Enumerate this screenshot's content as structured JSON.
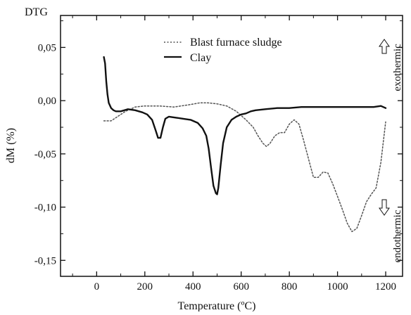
{
  "chart_data": {
    "type": "line",
    "title": "",
    "corner_label": "DTG",
    "xlabel": "Temperature (ºC)",
    "ylabel": "dM (%)",
    "xlim": [
      -150,
      1270
    ],
    "ylim": [
      -0.165,
      0.08
    ],
    "xticks": [
      0,
      200,
      400,
      600,
      800,
      1000,
      1200
    ],
    "xtick_labels": [
      "0",
      "200",
      "400",
      "600",
      "800",
      "1000",
      "1200"
    ],
    "yticks": [
      0.05,
      0.0,
      -0.05,
      -0.1,
      -0.15
    ],
    "ytick_labels": [
      "0,05",
      "0,00",
      "-0,05",
      "-0,10",
      "-0,15"
    ],
    "grid": false,
    "legend_position": "top-center",
    "annotations": [
      "exothermic",
      "endothermic"
    ],
    "series": [
      {
        "name": "Blast furnace sludge",
        "style": "dotted",
        "color": "#555555",
        "x": [
          30,
          60,
          80,
          120,
          160,
          200,
          260,
          320,
          380,
          430,
          460,
          500,
          540,
          580,
          620,
          650,
          670,
          690,
          705,
          720,
          740,
          760,
          780,
          800,
          820,
          840,
          860,
          880,
          900,
          920,
          940,
          960,
          980,
          1000,
          1020,
          1040,
          1060,
          1080,
          1100,
          1120,
          1140,
          1160,
          1180,
          1200
        ],
        "y": [
          -0.019,
          -0.019,
          -0.016,
          -0.01,
          -0.006,
          -0.005,
          -0.005,
          -0.006,
          -0.004,
          -0.002,
          -0.002,
          -0.003,
          -0.005,
          -0.01,
          -0.018,
          -0.025,
          -0.033,
          -0.04,
          -0.043,
          -0.04,
          -0.033,
          -0.03,
          -0.03,
          -0.022,
          -0.018,
          -0.022,
          -0.038,
          -0.055,
          -0.072,
          -0.072,
          -0.067,
          -0.068,
          -0.078,
          -0.09,
          -0.102,
          -0.115,
          -0.123,
          -0.12,
          -0.108,
          -0.095,
          -0.088,
          -0.082,
          -0.058,
          -0.02
        ]
      },
      {
        "name": "Clay",
        "style": "solid",
        "color": "#111111",
        "x": [
          30,
          35,
          40,
          45,
          50,
          60,
          70,
          80,
          100,
          130,
          160,
          190,
          210,
          230,
          245,
          255,
          265,
          275,
          285,
          300,
          330,
          360,
          390,
          420,
          440,
          455,
          465,
          475,
          485,
          495,
          500,
          505,
          515,
          525,
          540,
          560,
          580,
          600,
          620,
          640,
          660,
          700,
          750,
          800,
          850,
          900,
          950,
          1000,
          1050,
          1100,
          1150,
          1180,
          1200
        ],
        "y": [
          0.041,
          0.035,
          0.018,
          0.006,
          -0.002,
          -0.007,
          -0.009,
          -0.01,
          -0.01,
          -0.008,
          -0.009,
          -0.011,
          -0.013,
          -0.018,
          -0.028,
          -0.035,
          -0.035,
          -0.025,
          -0.017,
          -0.015,
          -0.016,
          -0.017,
          -0.018,
          -0.021,
          -0.026,
          -0.033,
          -0.045,
          -0.063,
          -0.08,
          -0.087,
          -0.088,
          -0.082,
          -0.06,
          -0.04,
          -0.025,
          -0.018,
          -0.015,
          -0.013,
          -0.012,
          -0.01,
          -0.009,
          -0.008,
          -0.007,
          -0.007,
          -0.006,
          -0.006,
          -0.006,
          -0.006,
          -0.006,
          -0.006,
          -0.006,
          -0.005,
          -0.007
        ]
      }
    ]
  }
}
